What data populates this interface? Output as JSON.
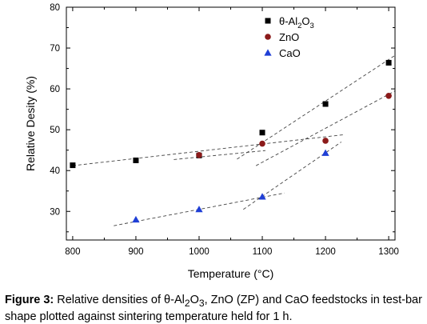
{
  "chart_data": {
    "type": "scatter",
    "xlabel": "Temperature (°C)",
    "ylabel": "Relative Desity (%)",
    "xlim": [
      790,
      1310
    ],
    "ylim": [
      23,
      80
    ],
    "x_ticks": [
      800,
      900,
      1000,
      1100,
      1200,
      1300
    ],
    "y_ticks": [
      30,
      40,
      50,
      60,
      70,
      80
    ],
    "x_tick_labels": [
      "800",
      "900",
      "1000",
      "1100",
      "1200",
      "1300"
    ],
    "y_tick_labels": [
      "30",
      "40",
      "50",
      "60",
      "70",
      "80"
    ],
    "legend_position": "top-right",
    "grid": false,
    "series": [
      {
        "name": "θ-Al2O3",
        "label_main": "θ-Al",
        "sub1": "2",
        "mid": "O",
        "sub2": "3",
        "marker": "square",
        "color": "#000000",
        "x": [
          800,
          900,
          1000,
          1100,
          1200,
          1300
        ],
        "y": [
          41.3,
          42.5,
          43.7,
          49.3,
          56.3,
          66.4
        ]
      },
      {
        "name": "ZnO",
        "marker": "circle",
        "color": "#8b1a1a",
        "x": [
          1000,
          1100,
          1200,
          1300
        ],
        "y": [
          43.8,
          46.6,
          47.3,
          58.3
        ]
      },
      {
        "name": "CaO",
        "marker": "triangle",
        "color": "#1f3fd6",
        "x": [
          900,
          1000,
          1100,
          1200
        ],
        "y": [
          28.0,
          30.5,
          33.6,
          44.3
        ]
      }
    ],
    "trend_lines": [
      {
        "x": [
          800,
          1230
        ],
        "y": [
          41.2,
          48.8
        ]
      },
      {
        "x": [
          1060,
          1310
        ],
        "y": [
          42.8,
          68.2
        ]
      },
      {
        "x": [
          960,
          1105
        ],
        "y": [
          42.7,
          44.9
        ]
      },
      {
        "x": [
          1090,
          1310
        ],
        "y": [
          41.2,
          59.5
        ]
      },
      {
        "x": [
          865,
          1135
        ],
        "y": [
          26.5,
          34.5
        ]
      },
      {
        "x": [
          1070,
          1225
        ],
        "y": [
          30.5,
          47.0
        ]
      }
    ]
  },
  "caption": {
    "lead": "Figure 3:",
    "t1": " Relative densities of θ-Al",
    "s1": "2",
    "t2": "O",
    "s2": "3",
    "t3": ", ZnO (ZP) and CaO feedstocks in test-bar shape plotted against sintering temperature held for 1 h."
  }
}
